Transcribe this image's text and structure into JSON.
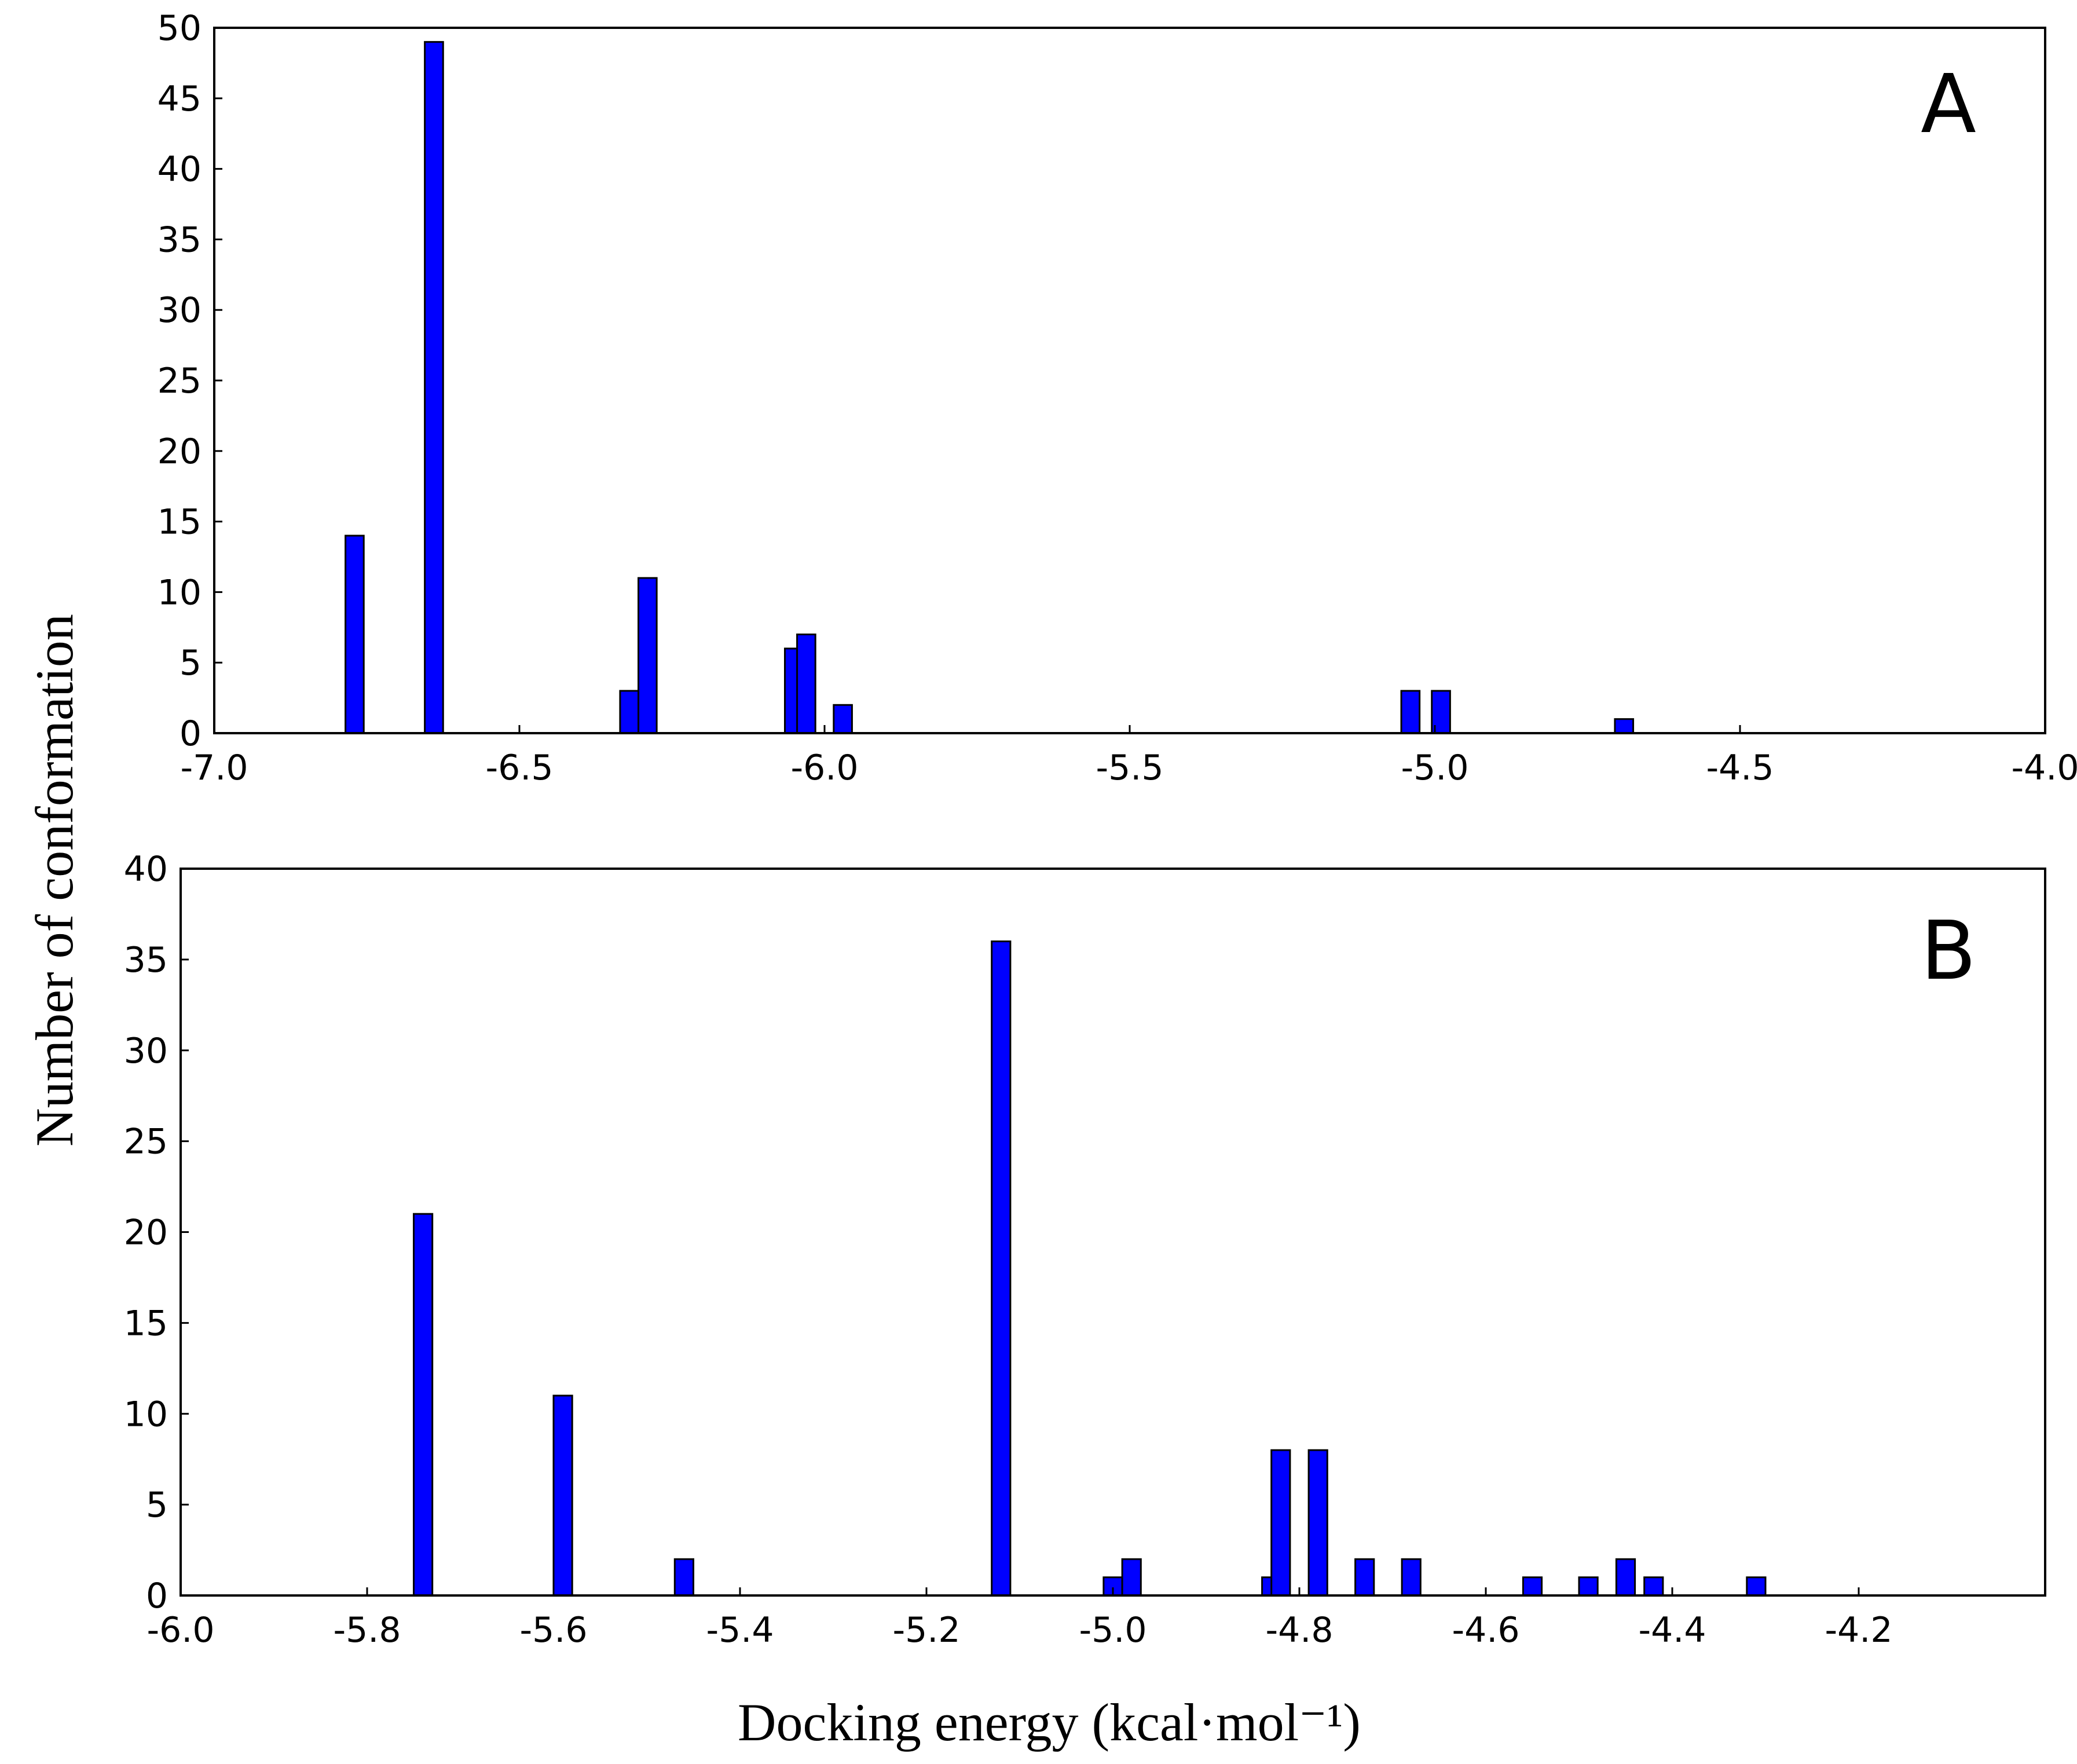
{
  "figure": {
    "ylabel": "Number of conformation",
    "xlabel": "Docking energy (kcal·mol⁻¹)"
  },
  "chart_data": [
    {
      "type": "bar",
      "panel_label": "A",
      "title": "",
      "xlabel": "Docking energy (kcal·mol⁻¹)",
      "ylabel": "Number of conformation",
      "xlim": [
        -7.0,
        -4.0
      ],
      "ylim": [
        0,
        50
      ],
      "bar_width": 0.03,
      "xticks": [
        -7.0,
        -6.5,
        -6.0,
        -5.5,
        -5.0,
        -4.5,
        -4.0
      ],
      "xtick_labels": [
        "-7.0",
        "-6.5",
        "-6.0",
        "-5.5",
        "-5.0",
        "-4.5",
        "-4.0"
      ],
      "yticks": [
        0,
        5,
        10,
        15,
        20,
        25,
        30,
        35,
        40,
        45,
        50
      ],
      "ytick_labels": [
        "0",
        "5",
        "10",
        "15",
        "20",
        "25",
        "30",
        "35",
        "40",
        "45",
        "50"
      ],
      "grid": false,
      "bar_color": "#0000ff",
      "x": [
        -6.77,
        -6.64,
        -6.32,
        -6.29,
        -6.05,
        -6.03,
        -5.97,
        -5.04,
        -4.99,
        -4.69
      ],
      "values": [
        14,
        49,
        3,
        11,
        6,
        7,
        2,
        3,
        3,
        1
      ]
    },
    {
      "type": "bar",
      "panel_label": "B",
      "title": "",
      "xlabel": "Docking energy (kcal·mol⁻¹)",
      "ylabel": "Number of conformation",
      "xlim": [
        -6.0,
        -4.0
      ],
      "ylim": [
        0,
        40
      ],
      "bar_width": 0.02,
      "xticks": [
        -6.0,
        -5.8,
        -5.6,
        -5.4,
        -5.2,
        -5.0,
        -4.8,
        -4.6,
        -4.4,
        -4.2
      ],
      "xtick_labels": [
        "-6.0",
        "-5.8",
        "-5.6",
        "-5.4",
        "-5.2",
        "-5.0",
        "-4.8",
        "-4.6",
        "-4.4",
        "-4.2"
      ],
      "yticks": [
        0,
        5,
        10,
        15,
        20,
        25,
        30,
        35,
        40
      ],
      "ytick_labels": [
        "0",
        "5",
        "10",
        "15",
        "20",
        "25",
        "30",
        "35",
        "40"
      ],
      "grid": false,
      "bar_color": "#0000ff",
      "x": [
        -5.74,
        -5.59,
        -5.46,
        -5.12,
        -5.0,
        -4.98,
        -4.83,
        -4.82,
        -4.78,
        -4.73,
        -4.68,
        -4.55,
        -4.49,
        -4.45,
        -4.42,
        -4.31
      ],
      "values": [
        21,
        11,
        2,
        36,
        1,
        2,
        1,
        8,
        8,
        2,
        2,
        1,
        1,
        2,
        1,
        1
      ]
    }
  ]
}
